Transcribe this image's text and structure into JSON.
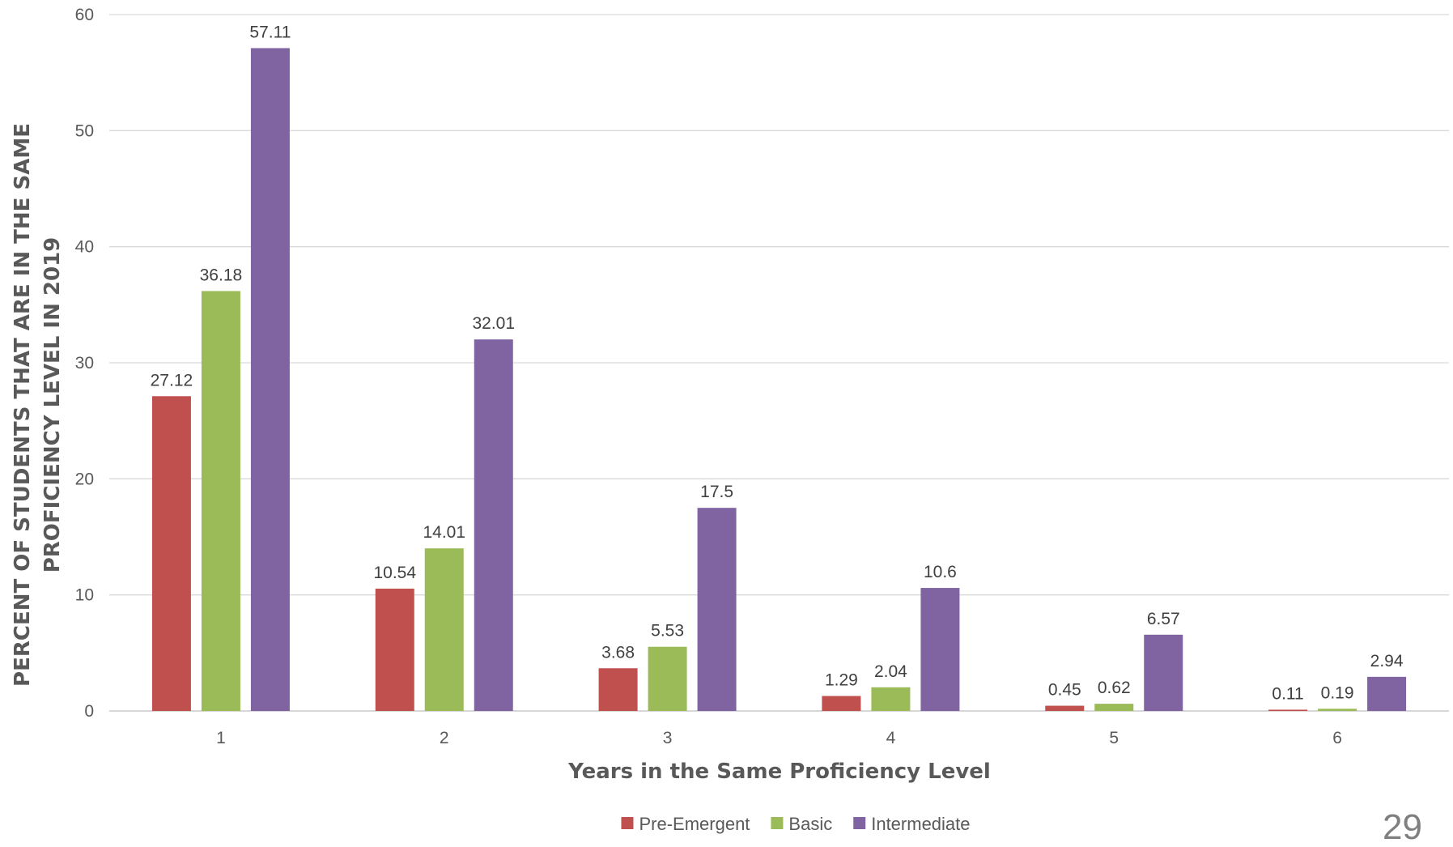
{
  "chart_data": {
    "type": "bar",
    "title": "",
    "xlabel": "Years in the Same Proficiency Level",
    "ylabel_line1": "PERCENT OF STUDENTS THAT ARE IN THE SAME",
    "ylabel_line2": "PROFICIENCY LEVEL IN 2019",
    "categories": [
      "1",
      "2",
      "3",
      "4",
      "5",
      "6"
    ],
    "ylim": [
      0,
      60
    ],
    "yticks": [
      0,
      10,
      20,
      30,
      40,
      50,
      60
    ],
    "grid": true,
    "legend_position": "bottom",
    "series": [
      {
        "name": "Pre-Emergent",
        "color": "#C0504D",
        "values": [
          27.12,
          10.54,
          3.68,
          1.29,
          0.45,
          0.11
        ]
      },
      {
        "name": "Basic",
        "color": "#9BBB59",
        "values": [
          36.18,
          14.01,
          5.53,
          2.04,
          0.62,
          0.19
        ]
      },
      {
        "name": "Intermediate",
        "color": "#8064A2",
        "values": [
          57.11,
          32.01,
          17.5,
          10.6,
          6.57,
          2.94
        ]
      }
    ]
  },
  "page_number": "29"
}
